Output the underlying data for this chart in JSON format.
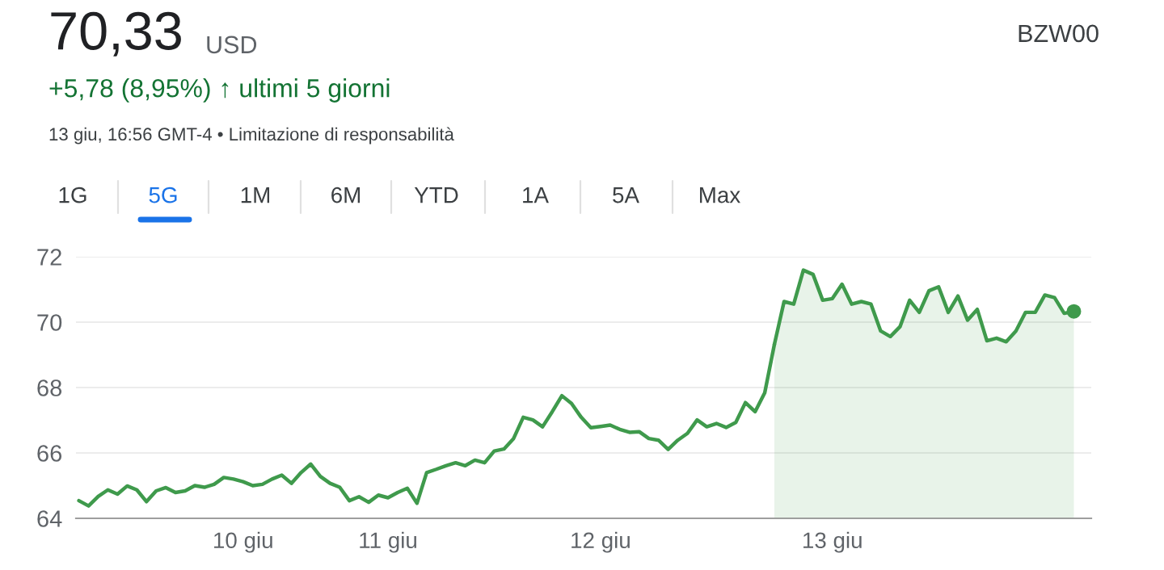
{
  "chart_data": {
    "type": "line",
    "title": "70,33",
    "annotations": [
      "USD",
      "+5,78 (8,95%) ↑ ultimi 5 giorni",
      "13 giu, 16:56 GMT-4 • Limitazione di responsabilità",
      "BZW00",
      "1G",
      "5G",
      "1M",
      "6M",
      "YTD",
      "1A",
      "5A",
      "Max"
    ],
    "categories": [
      null,
      null,
      null,
      null,
      null,
      null,
      null,
      null,
      null,
      null,
      null,
      null,
      null,
      null,
      null,
      null,
      null,
      "10 giu",
      null,
      null,
      null,
      null,
      null,
      null,
      null,
      null,
      null,
      null,
      null,
      null,
      null,
      null,
      "11 giu",
      null,
      null,
      null,
      null,
      null,
      null,
      null,
      null,
      null,
      null,
      null,
      null,
      null,
      null,
      null,
      null,
      null,
      null,
      null,
      null,
      null,
      "12 giu",
      null,
      null,
      null,
      null,
      null,
      null,
      null,
      null,
      null,
      null,
      null,
      null,
      null,
      null,
      null,
      null,
      null,
      null,
      null,
      null,
      null,
      null,
      null,
      "13 giu",
      null,
      null,
      null,
      null,
      null,
      null,
      null,
      null,
      null,
      null,
      null,
      null,
      null,
      null,
      null,
      null,
      null,
      null,
      null,
      null,
      null,
      null,
      null,
      null,
      null
    ],
    "series": [
      {
        "color": "#3f9a4c",
        "values": [
          64.54,
          64.38,
          64.67,
          64.87,
          64.74,
          64.99,
          64.87,
          64.51,
          64.84,
          64.94,
          64.79,
          64.84,
          65.0,
          64.95,
          65.04,
          65.25,
          65.2,
          65.12,
          65.0,
          65.04,
          65.2,
          65.32,
          65.07,
          65.4,
          65.66,
          65.28,
          65.07,
          64.95,
          64.54,
          64.66,
          64.49,
          64.71,
          64.63,
          64.79,
          64.92,
          64.46,
          65.4,
          65.5,
          65.61,
          65.7,
          65.61,
          65.78,
          65.7,
          66.06,
          66.12,
          66.44,
          67.09,
          67.01,
          66.8,
          67.26,
          67.75,
          67.51,
          67.09,
          66.77,
          66.81,
          66.85,
          66.72,
          66.63,
          66.65,
          66.44,
          66.39,
          66.11,
          66.39,
          66.6,
          67.01,
          66.8,
          66.9,
          66.78,
          66.93,
          67.54,
          67.26,
          67.84,
          69.32,
          null,
          null,
          null,
          null,
          null,
          null,
          null,
          null,
          null,
          null,
          null,
          null,
          null,
          null,
          null,
          null,
          null,
          null,
          null,
          null,
          null,
          null,
          null,
          null,
          null,
          null,
          null,
          null,
          null,
          null,
          null
        ]
      },
      {
        "type": "area",
        "color": "#3f9a4c",
        "values": [
          null,
          null,
          null,
          null,
          null,
          null,
          null,
          null,
          null,
          null,
          null,
          null,
          null,
          null,
          null,
          null,
          null,
          null,
          null,
          null,
          null,
          null,
          null,
          null,
          null,
          null,
          null,
          null,
          null,
          null,
          null,
          null,
          null,
          null,
          null,
          null,
          null,
          null,
          null,
          null,
          null,
          null,
          null,
          null,
          null,
          null,
          null,
          null,
          null,
          null,
          null,
          null,
          null,
          null,
          null,
          null,
          null,
          null,
          null,
          null,
          null,
          null,
          null,
          null,
          null,
          null,
          null,
          null,
          null,
          null,
          null,
          null,
          69.32,
          70.63,
          70.55,
          71.59,
          71.46,
          70.67,
          70.72,
          71.16,
          70.55,
          70.63,
          70.55,
          69.73,
          69.56,
          69.86,
          70.67,
          70.3,
          70.96,
          71.08,
          70.3,
          70.8,
          70.06,
          70.39,
          69.43,
          69.51,
          69.4,
          69.73,
          70.3,
          70.3,
          70.83,
          70.75,
          70.27,
          70.33
        ]
      },
      {
        "type": "scatter",
        "color": "#3f9a4c",
        "values": [
          null,
          null,
          null,
          null,
          null,
          null,
          null,
          null,
          null,
          null,
          null,
          null,
          null,
          null,
          null,
          null,
          null,
          null,
          null,
          null,
          null,
          null,
          null,
          null,
          null,
          null,
          null,
          null,
          null,
          null,
          null,
          null,
          null,
          null,
          null,
          null,
          null,
          null,
          null,
          null,
          null,
          null,
          null,
          null,
          null,
          null,
          null,
          null,
          null,
          null,
          null,
          null,
          null,
          null,
          null,
          null,
          null,
          null,
          null,
          null,
          null,
          null,
          null,
          null,
          null,
          null,
          null,
          null,
          null,
          null,
          null,
          null,
          null,
          null,
          null,
          null,
          null,
          null,
          null,
          null,
          null,
          null,
          null,
          null,
          null,
          null,
          null,
          null,
          null,
          null,
          null,
          null,
          null,
          null,
          null,
          null,
          null,
          null,
          null,
          null,
          null,
          null,
          null,
          70.33
        ]
      }
    ],
    "ylim": [
      64,
      72
    ],
    "yticks": [
      64,
      66,
      68,
      70,
      72
    ],
    "grid": "y"
  }
}
